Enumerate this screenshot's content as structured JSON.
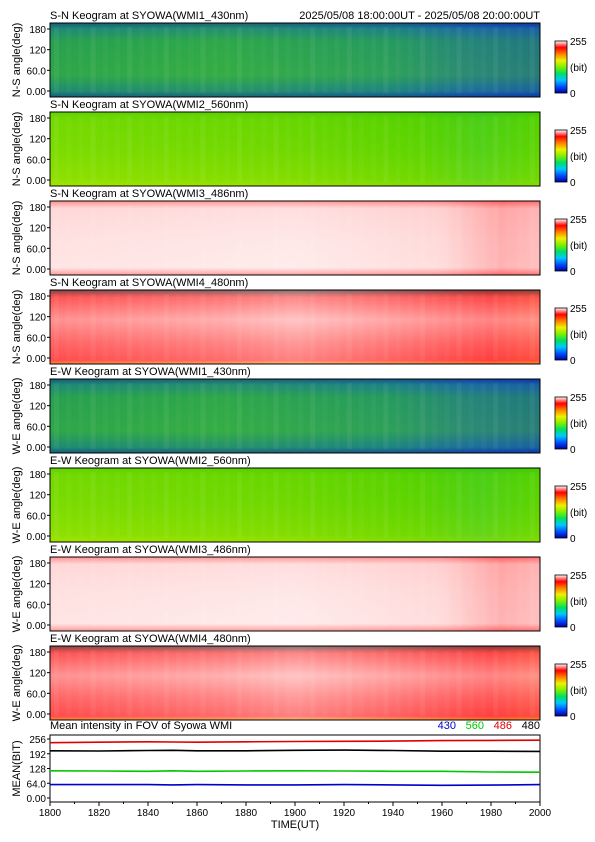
{
  "header": {
    "time_range": "2025/05/08 18:00:00UT - 2025/05/08 20:00:00UT"
  },
  "colorbar": {
    "max_label": "255",
    "unit_label": "(bit)",
    "min_label": "0",
    "colors": [
      "#0000a0",
      "#0050ff",
      "#00c8ff",
      "#00e060",
      "#80f000",
      "#f0f000",
      "#ff8000",
      "#ff0000",
      "#ffffff"
    ]
  },
  "chart_data": [
    {
      "type": "heatmap",
      "title": "S-N Keogram at SYOWA(WMI1_430nm)",
      "ylabel": "N-S angle(deg)",
      "yticks": [
        "180",
        "120",
        "60.0",
        "0.00"
      ],
      "ylim": [
        0,
        180
      ],
      "xlim": [
        1800,
        2000
      ],
      "palette": "green",
      "description_values": "keogram intensity 0-255 bit"
    },
    {
      "type": "heatmap",
      "title": "S-N Keogram at SYOWA(WMI2_560nm)",
      "ylabel": "N-S angle(deg)",
      "yticks": [
        "180",
        "120",
        "60.0",
        "0.00"
      ],
      "ylim": [
        0,
        180
      ],
      "xlim": [
        1800,
        2000
      ],
      "palette": "lime"
    },
    {
      "type": "heatmap",
      "title": "S-N Keogram at SYOWA(WMI3_486nm)",
      "ylabel": "N-S angle(deg)",
      "yticks": [
        "180",
        "120",
        "60.0",
        "0.00"
      ],
      "ylim": [
        0,
        180
      ],
      "xlim": [
        1800,
        2000
      ],
      "palette": "white-red"
    },
    {
      "type": "heatmap",
      "title": "S-N Keogram at SYOWA(WMI4_480nm)",
      "ylabel": "N-S angle(deg)",
      "yticks": [
        "180",
        "120",
        "60.0",
        "0.00"
      ],
      "ylim": [
        0,
        180
      ],
      "xlim": [
        1800,
        2000
      ],
      "palette": "red"
    },
    {
      "type": "heatmap",
      "title": "E-W Keogram at SYOWA(WMI1_430nm)",
      "ylabel": "W-E angle(deg)",
      "yticks": [
        "180",
        "120",
        "60.0",
        "0.00"
      ],
      "ylim": [
        0,
        180
      ],
      "xlim": [
        1800,
        2000
      ],
      "palette": "green"
    },
    {
      "type": "heatmap",
      "title": "E-W Keogram at SYOWA(WMI2_560nm)",
      "ylabel": "W-E angle(deg)",
      "yticks": [
        "180",
        "120",
        "60.0",
        "0.00"
      ],
      "ylim": [
        0,
        180
      ],
      "xlim": [
        1800,
        2000
      ],
      "palette": "lime"
    },
    {
      "type": "heatmap",
      "title": "E-W Keogram at SYOWA(WMI3_486nm)",
      "ylabel": "W-E angle(deg)",
      "yticks": [
        "180",
        "120",
        "60.0",
        "0.00"
      ],
      "ylim": [
        0,
        180
      ],
      "xlim": [
        1800,
        2000
      ],
      "palette": "white-red"
    },
    {
      "type": "heatmap",
      "title": "E-W Keogram at SYOWA(WMI4_480nm)",
      "ylabel": "W-E angle(deg)",
      "yticks": [
        "180",
        "120",
        "60.0",
        "0.00"
      ],
      "ylim": [
        0,
        180
      ],
      "xlim": [
        1800,
        2000
      ],
      "palette": "red"
    },
    {
      "type": "line",
      "title": "Mean intensity in FOV of Syowa WMI",
      "ylabel": "MEAN(BIT)",
      "xlabel": "TIME(UT)",
      "yticks": [
        "256",
        "192",
        "128",
        "64.0",
        "0.00"
      ],
      "ylim": [
        0,
        256
      ],
      "xticks": [
        "1800",
        "1810",
        "1820",
        "1830",
        "1840",
        "1850",
        "1860",
        "1870",
        "1880",
        "1890",
        "1900",
        "1910",
        "1920",
        "1930",
        "1940",
        "1950",
        "1960",
        "1970",
        "1980",
        "1990",
        "2000"
      ],
      "xlim": [
        1800,
        2000
      ],
      "x": [
        1800,
        1820,
        1840,
        1850,
        1860,
        1880,
        1900,
        1920,
        1940,
        1960,
        1980,
        2000
      ],
      "series": [
        {
          "name": "430",
          "color": "#0000c8",
          "values": [
            58,
            58,
            58,
            57,
            58,
            57,
            57,
            58,
            57,
            55,
            56,
            58
          ]
        },
        {
          "name": "560",
          "color": "#00c800",
          "values": [
            118,
            117,
            116,
            118,
            116,
            117,
            118,
            117,
            116,
            116,
            113,
            112
          ]
        },
        {
          "name": "486",
          "color": "#e00000",
          "values": [
            240,
            242,
            244,
            243,
            242,
            244,
            245,
            246,
            247,
            249,
            250,
            251
          ]
        },
        {
          "name": "480",
          "color": "#000000",
          "values": [
            205,
            204,
            206,
            207,
            205,
            205,
            207,
            208,
            206,
            203,
            203,
            202
          ]
        }
      ]
    }
  ]
}
